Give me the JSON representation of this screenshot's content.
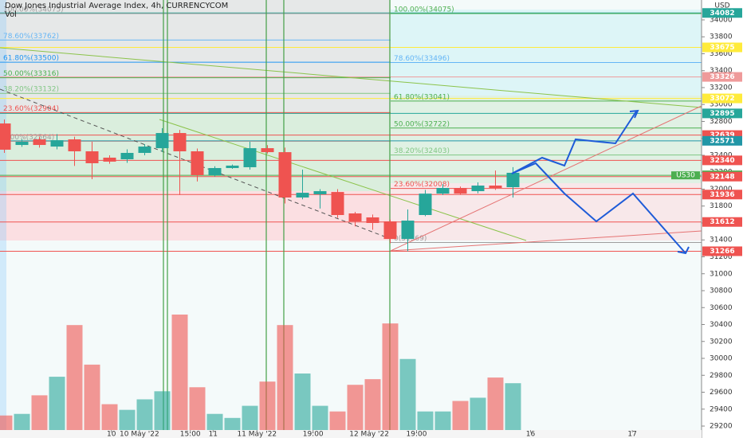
{
  "chart_data": {
    "type": "candlestick",
    "title": "Dow Jones Industrial Average Index, 4h, CURRENCYCOM",
    "volume_label": "Vol",
    "currency": "USD",
    "up_color": "#26a69a",
    "down_color": "#ef5350",
    "open": [
      32776,
      32522,
      32588,
      32503,
      32588,
      32447,
      32372,
      32353,
      32428,
      32484,
      32663,
      32447,
      32165,
      32249,
      32259,
      32484,
      32437,
      31901,
      31939,
      31966,
      31713,
      31666,
      31619,
      31411,
      31694,
      31947,
      32014,
      31976,
      32042,
      32023
    ],
    "high": [
      32823,
      32590,
      32620,
      32650,
      32620,
      32560,
      32400,
      32470,
      32530,
      32720,
      32700,
      32480,
      32270,
      32290,
      32560,
      32520,
      32490,
      32230,
      32000,
      32000,
      31730,
      31700,
      31640,
      31760,
      31990,
      32060,
      32030,
      32080,
      32220,
      32260
    ],
    "low": [
      32428,
      32500,
      32490,
      32470,
      32274,
      32118,
      32300,
      32310,
      32400,
      32440,
      31930,
      32090,
      32150,
      32240,
      32230,
      32420,
      31830,
      31880,
      31770,
      31660,
      31560,
      31520,
      31360,
      31266,
      31680,
      31930,
      31936,
      31950,
      31990,
      31900
    ],
    "close": [
      32466,
      32560,
      32522,
      32578,
      32447,
      32306,
      32325,
      32428,
      32503,
      32663,
      32447,
      32165,
      32249,
      32278,
      32484,
      32437,
      31901,
      31957,
      31976,
      31694,
      31619,
      31600,
      31411,
      31628,
      31947,
      32014,
      31947,
      32042,
      32014,
      32193
    ],
    "volume": [
      18,
      20,
      43,
      66,
      130,
      81,
      32,
      25,
      38,
      48,
      143,
      53,
      20,
      15,
      30,
      60,
      130,
      70,
      30,
      23,
      56,
      63,
      132,
      88,
      23,
      23,
      36,
      40,
      65,
      58
    ],
    "xlim": [
      -0.25,
      39.75
    ],
    "xticks": [
      {
        "value": 6.1,
        "label": "10"
      },
      {
        "value": 7.7,
        "label": "10 May '22"
      },
      {
        "value": 10.6,
        "label": "15:00"
      },
      {
        "value": 11.9,
        "label": "11"
      },
      {
        "value": 14.4,
        "label": "11 May '22"
      },
      {
        "value": 17.6,
        "label": "19:00"
      },
      {
        "value": 20.8,
        "label": "12 May '22"
      },
      {
        "value": 23.5,
        "label": "19:00"
      },
      {
        "value": 30,
        "label": "16"
      },
      {
        "value": 35.8,
        "label": "17"
      }
    ],
    "ylim": [
      29059,
      34235
    ],
    "yticks": [
      29200,
      29400,
      29600,
      29800,
      30000,
      30200,
      30400,
      30600,
      30800,
      31000,
      31200,
      31400,
      31600,
      31800,
      32000,
      32200,
      32400,
      32600,
      32800,
      33000,
      33200,
      33400,
      33600,
      33800,
      34000
    ],
    "price_lines": [
      {
        "value": 34082,
        "color": "#26a69a"
      },
      {
        "value": 33675,
        "color": "#ffeb3b"
      },
      {
        "value": 33326,
        "color": "#ef9a9a"
      },
      {
        "value": 33072,
        "color": "#ffeb3b"
      },
      {
        "value": 32895,
        "color": "#26a69a"
      },
      {
        "value": 32639,
        "color": "#ef5350"
      },
      {
        "value": 32571,
        "color": "#2196a6"
      },
      {
        "value": 32340,
        "color": "#ef5350"
      },
      {
        "value": 32163,
        "color": "#4caf50",
        "name": "US30"
      },
      {
        "value": 32148,
        "color": "#ef5350"
      },
      {
        "value": 31936,
        "color": "#ef5350"
      },
      {
        "value": 31612,
        "color": "#ef5350"
      },
      {
        "value": 31266,
        "color": "#ef5350"
      }
    ],
    "fib_left": [
      {
        "value": 34075,
        "label": "100.00%(34075)",
        "color": "#9e9e9e"
      },
      {
        "value": 33762,
        "label": "78.60%(33762)",
        "color": "#64b5f6"
      },
      {
        "value": 33500,
        "label": "61.80%(33500)",
        "color": "#2196f3"
      },
      {
        "value": 33316,
        "label": "50.00%(33316)",
        "color": "#4caf50"
      },
      {
        "value": 33132,
        "label": "38.20%(33132)",
        "color": "#81c784"
      },
      {
        "value": 32904,
        "label": "23.60%(32904)",
        "color": "#ef5350"
      },
      {
        "value": 32564,
        "label": "0.00%(32564)",
        "color": "#9e9e9e"
      }
    ],
    "fib_right": [
      {
        "value": 34075,
        "label": "100.00%(34075)",
        "color": "#4caf50"
      },
      {
        "value": 33496,
        "label": "78.60%(33496)",
        "color": "#64b5f6"
      },
      {
        "value": 33041,
        "label": "61.80%(33041)",
        "color": "#4caf50"
      },
      {
        "value": 32722,
        "label": "50.00%(32722)",
        "color": "#4caf50"
      },
      {
        "value": 32403,
        "label": "38.20%(32403)",
        "color": "#81c784"
      },
      {
        "value": 32008,
        "label": "23.60%(32008)",
        "color": "#ef5350"
      },
      {
        "value": 31369,
        "label": "0(31369)",
        "color": "#9e9e9e"
      }
    ]
  }
}
